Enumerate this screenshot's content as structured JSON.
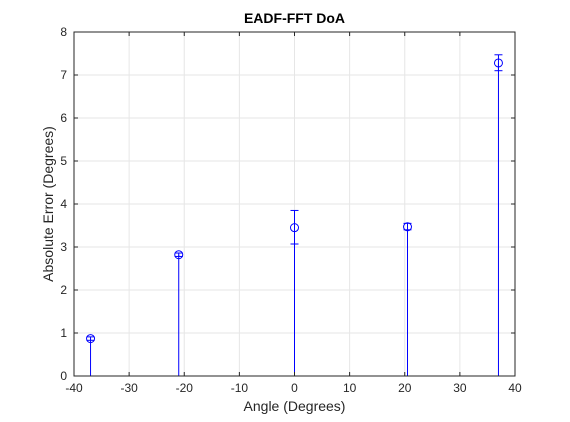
{
  "chart_data": {
    "type": "stem",
    "title": "EADF-FFT DoA",
    "xlabel": "Angle (Degrees)",
    "ylabel": "Absolute Error (Degrees)",
    "xlim": [
      -40,
      40
    ],
    "ylim": [
      0,
      8
    ],
    "xticks": [
      -40,
      -30,
      -20,
      -10,
      0,
      10,
      20,
      30,
      40
    ],
    "yticks": [
      0,
      1,
      2,
      3,
      4,
      5,
      6,
      7,
      8
    ],
    "grid": true,
    "color": "#0000ff",
    "points": [
      {
        "x": -37,
        "y": 0.87,
        "err_low": 0.83,
        "err_high": 0.91
      },
      {
        "x": -21,
        "y": 2.82,
        "err_low": 2.78,
        "err_high": 2.86
      },
      {
        "x": 0,
        "y": 3.45,
        "err_low": 3.07,
        "err_high": 3.85
      },
      {
        "x": 20.5,
        "y": 3.47,
        "err_low": 3.4,
        "err_high": 3.55
      },
      {
        "x": 37,
        "y": 7.28,
        "err_low": 7.1,
        "err_high": 7.47
      }
    ]
  }
}
